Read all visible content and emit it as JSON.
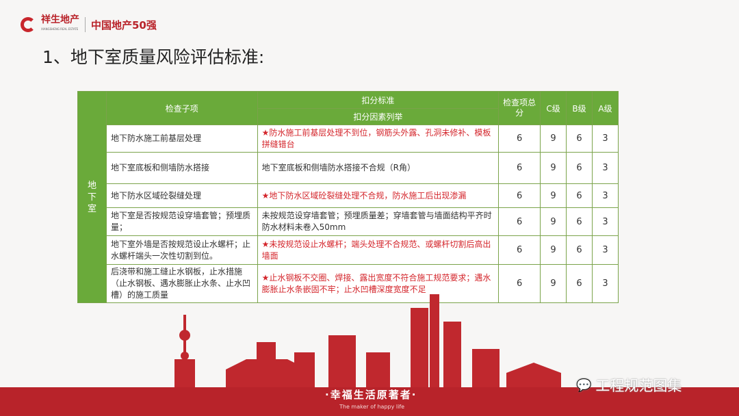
{
  "header": {
    "brand": "祥生地产",
    "brand_en": "XIANGSHENG REAL ESTATE",
    "rank": "中国地产50强"
  },
  "title": "1、地下室质量风险评估标准:",
  "table": {
    "headers": {
      "item": "检查子项",
      "standard": "扣分标准",
      "factors": "扣分因素列举",
      "total": "检查项总分",
      "c": "C级",
      "b": "B级",
      "a": "A级"
    },
    "category": "地下室",
    "rows": [
      {
        "item": "地下防水施工前基层处理",
        "factor": "★防水施工前基层处理不到位，钢筋头外露、孔洞未修补、模板拼缝错台",
        "red": true,
        "total": "6",
        "c": "9",
        "b": "6",
        "a": "3"
      },
      {
        "item": "地下室底板和侧墙防水搭接",
        "factor": "地下室底板和侧墙防水搭接不合规（R角）",
        "red": false,
        "total": "6",
        "c": "9",
        "b": "6",
        "a": "3"
      },
      {
        "item": "地下防水区域砼裂缝处理",
        "factor": "★地下防水区域砼裂缝处理不合规，防水施工后出现渗漏",
        "red": true,
        "total": "6",
        "c": "9",
        "b": "6",
        "a": "3"
      },
      {
        "item": "地下室是否按规范设穿墙套管；预埋质量；",
        "factor": "未按规范设穿墙套管；预埋质量差；穿墙套管与墙面结构平齐时防水材料未卷入50mm",
        "red": false,
        "total": "6",
        "c": "9",
        "b": "6",
        "a": "3"
      },
      {
        "item": "地下室外墙是否按规范设止水螺杆；止水螺杆端头一次性切割到位。",
        "factor": "★未按规范设止水螺杆；端头处理不合规范、或螺杆切割后高出墙面",
        "red": true,
        "total": "6",
        "c": "9",
        "b": "6",
        "a": "3"
      },
      {
        "item": "后浇带和施工缝止水钢板，止水措施（止水钢板、遇水膨胀止水条、止水凹槽）的施工质量",
        "factor": "★止水钢板不交圈、焊接、露出宽度不符合施工规范要求；遇水膨胀止水条嵌固不牢；止水凹槽深度宽度不足",
        "red": true,
        "total": "6",
        "c": "9",
        "b": "6",
        "a": "3"
      }
    ]
  },
  "footer": {
    "slogan": "·幸福生活原著者·",
    "slogan_en": "The maker of happy life",
    "watermark": "工程规范图集"
  },
  "colors": {
    "green": "#6aaa3a",
    "red": "#b8232a",
    "text_red": "#d4262c"
  }
}
